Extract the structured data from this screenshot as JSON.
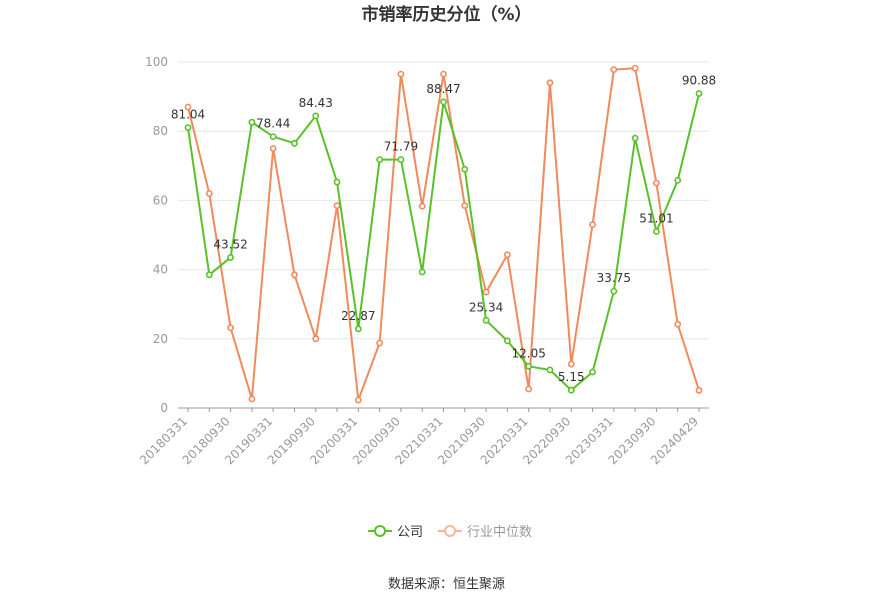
{
  "chart_data": {
    "type": "line",
    "title": "市销率历史分位（%）",
    "source": "数据来源：恒生聚源",
    "ylim": [
      0,
      100
    ],
    "yticks": [
      0,
      20,
      40,
      60,
      80,
      100
    ],
    "x_tick_labels": [
      "20180331",
      "20180930",
      "20190331",
      "20190930",
      "20200331",
      "20200930",
      "20210331",
      "20210930",
      "20220331",
      "20220930",
      "20230331",
      "20230930",
      "20240429"
    ],
    "x": [
      "20180331",
      "20180630",
      "20180930",
      "20181231",
      "20190331",
      "20190630",
      "20190930",
      "20191231",
      "20200331",
      "20200630",
      "20200930",
      "20201231",
      "20210331",
      "20210630",
      "20210930",
      "20211231",
      "20220331",
      "20220630",
      "20220930",
      "20221231",
      "20230331",
      "20230630",
      "20230930",
      "20231231",
      "20240429"
    ],
    "legend_position": "bottom",
    "grid": true,
    "series": [
      {
        "name": "公司",
        "color": "#5ac02a",
        "values": [
          81.04,
          38.5,
          43.52,
          82.6,
          78.44,
          76.5,
          84.43,
          65.3,
          22.87,
          71.79,
          71.79,
          39.3,
          88.47,
          69.0,
          25.34,
          19.4,
          12.05,
          11.0,
          5.15,
          10.4,
          33.75,
          78.0,
          51.01,
          65.8,
          90.88
        ],
        "labeled_points": [
          {
            "index": 0,
            "text": "81.04"
          },
          {
            "index": 2,
            "text": "43.52"
          },
          {
            "index": 4,
            "text": "78.44"
          },
          {
            "index": 6,
            "text": "84.43"
          },
          {
            "index": 8,
            "text": "22.87"
          },
          {
            "index": 10,
            "text": "71.79"
          },
          {
            "index": 12,
            "text": "88.47"
          },
          {
            "index": 14,
            "text": "25.34"
          },
          {
            "index": 16,
            "text": "12.05"
          },
          {
            "index": 18,
            "text": "5.15"
          },
          {
            "index": 20,
            "text": "33.75"
          },
          {
            "index": 22,
            "text": "51.01"
          },
          {
            "index": 24,
            "text": "90.88"
          }
        ]
      },
      {
        "name": "行业中位数",
        "color": "#f08a5d",
        "values": [
          87.0,
          62.0,
          23.2,
          2.6,
          75.0,
          38.5,
          20.0,
          58.5,
          2.3,
          18.8,
          96.5,
          58.3,
          96.5,
          58.5,
          33.5,
          44.3,
          5.5,
          94.0,
          12.7,
          53.0,
          97.8,
          98.2,
          65.0,
          24.2,
          5.1
        ]
      }
    ]
  }
}
